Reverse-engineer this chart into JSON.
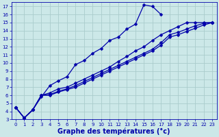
{
  "xlabel": "Graphe des températures (°c)",
  "bg_color": "#cce8e8",
  "grid_color": "#aacccc",
  "line_color": "#0000aa",
  "ylim": [
    3,
    17.5
  ],
  "xlim": [
    -0.5,
    23.5
  ],
  "yticks": [
    3,
    4,
    5,
    6,
    7,
    8,
    9,
    10,
    11,
    12,
    13,
    14,
    15,
    16,
    17
  ],
  "xticks": [
    0,
    1,
    2,
    3,
    4,
    5,
    6,
    7,
    8,
    9,
    10,
    11,
    12,
    13,
    14,
    15,
    16,
    17,
    18,
    19,
    20,
    21,
    22,
    23
  ],
  "series": [
    {
      "x": [
        0,
        1,
        2,
        3,
        4,
        5,
        6,
        7,
        8,
        9,
        10,
        11,
        12,
        13,
        14,
        15,
        16,
        17
      ],
      "y": [
        4.5,
        3.2,
        4.2,
        5.8,
        7.2,
        7.8,
        8.3,
        9.8,
        10.3,
        11.2,
        11.8,
        12.8,
        13.2,
        14.2,
        14.8,
        17.2,
        17.0,
        16.0
      ]
    },
    {
      "x": [
        0,
        1,
        2,
        3,
        4,
        5,
        6,
        7,
        8,
        9,
        10,
        11,
        12,
        13,
        14,
        15,
        16,
        17,
        18,
        19,
        20,
        21,
        22,
        23
      ],
      "y": [
        4.5,
        3.2,
        4.2,
        6.0,
        6.3,
        6.8,
        7.0,
        7.5,
        8.0,
        8.5,
        9.0,
        9.5,
        10.2,
        10.8,
        11.5,
        12.0,
        12.8,
        13.5,
        14.0,
        14.5,
        15.0,
        15.0,
        15.0,
        15.0
      ]
    },
    {
      "x": [
        0,
        1,
        2,
        3,
        4,
        5,
        6,
        7,
        8,
        9,
        10,
        11,
        12,
        13,
        14,
        15,
        16,
        17,
        18,
        19,
        20,
        21,
        22,
        23
      ],
      "y": [
        4.5,
        3.2,
        4.2,
        6.0,
        6.1,
        6.5,
        6.8,
        7.2,
        7.7,
        8.2,
        8.7,
        9.2,
        9.7,
        10.2,
        10.7,
        11.2,
        11.7,
        12.5,
        13.5,
        13.8,
        14.2,
        14.6,
        14.9,
        15.0
      ]
    },
    {
      "x": [
        0,
        1,
        2,
        3,
        4,
        5,
        6,
        7,
        8,
        9,
        10,
        11,
        12,
        13,
        14,
        15,
        16,
        17,
        18,
        19,
        20,
        21,
        22,
        23
      ],
      "y": [
        4.5,
        3.2,
        4.2,
        6.0,
        6.0,
        6.4,
        6.7,
        7.0,
        7.5,
        8.0,
        8.5,
        9.0,
        9.5,
        10.0,
        10.5,
        11.0,
        11.5,
        12.2,
        13.2,
        13.5,
        13.9,
        14.3,
        14.7,
        15.0
      ]
    }
  ],
  "tick_fontsize": 5.0,
  "label_fontsize": 7.0,
  "markersize": 2.5,
  "linewidth": 0.9
}
